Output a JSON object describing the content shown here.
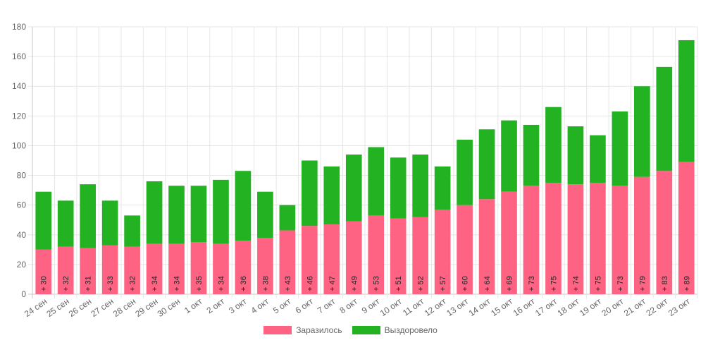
{
  "chart_data": {
    "type": "bar",
    "stacked": true,
    "categories": [
      "24 сен",
      "25 сен",
      "26 сен",
      "27 сен",
      "28 сен",
      "29 сен",
      "30 сен",
      "1 окт",
      "2 окт",
      "3 окт",
      "4 окт",
      "5 окт",
      "6 окт",
      "7 окт",
      "8 окт",
      "9 окт",
      "10 окт",
      "11 окт",
      "12 окт",
      "13 окт",
      "14 окт",
      "15 окт",
      "16 окт",
      "17 окт",
      "18 окт",
      "19 окт",
      "20 окт",
      "21 окт",
      "22 окт",
      "23 окт"
    ],
    "series": [
      {
        "name": "Заразилось",
        "color": "#ff6384",
        "values": [
          30,
          32,
          31,
          33,
          32,
          34,
          34,
          35,
          34,
          36,
          38,
          43,
          46,
          47,
          49,
          53,
          51,
          52,
          57,
          60,
          64,
          69,
          73,
          75,
          74,
          75,
          73,
          79,
          83,
          89
        ]
      },
      {
        "name": "Выздоровело",
        "color": "#22b222",
        "values": [
          39,
          31,
          43,
          30,
          21,
          42,
          39,
          38,
          43,
          47,
          31,
          17,
          44,
          39,
          45,
          46,
          41,
          42,
          29,
          44,
          47,
          48,
          41,
          51,
          39,
          32,
          50,
          61,
          70,
          82
        ]
      }
    ],
    "data_labels": [
      "+ 30",
      "+ 32",
      "+ 31",
      "+ 33",
      "+ 32",
      "+ 34",
      "+ 34",
      "+ 35",
      "+ 34",
      "+ 36",
      "+ 38",
      "+ 43",
      "+ 46",
      "+ 47",
      "+ 49",
      "+ 53",
      "+ 51",
      "+ 52",
      "+ 57",
      "+ 60",
      "+ 64",
      "+ 69",
      "+ 73",
      "+ 75",
      "+ 74",
      "+ 75",
      "+ 73",
      "+ 79",
      "+ 83",
      "+ 89"
    ],
    "yticks": [
      "0",
      "20",
      "40",
      "60",
      "80",
      "100",
      "120",
      "140",
      "160",
      "180"
    ],
    "ylim": [
      0,
      180
    ],
    "title": "",
    "xlabel": "",
    "ylabel": "",
    "grid": true,
    "legend_position": "bottom"
  }
}
